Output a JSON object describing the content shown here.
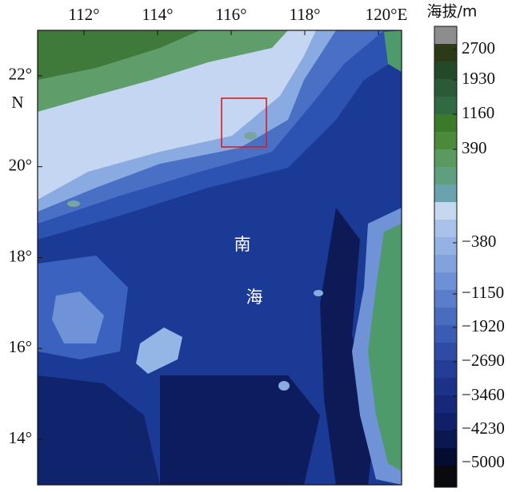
{
  "map": {
    "type": "map",
    "xlim": [
      110.74,
      120.63
    ],
    "ylim": [
      13,
      23
    ],
    "xticks": [
      {
        "value": 112,
        "label": "112°"
      },
      {
        "value": 114,
        "label": "114°"
      },
      {
        "value": 116,
        "label": "116°"
      },
      {
        "value": 118,
        "label": "118°"
      },
      {
        "value": 120,
        "label": "120°E"
      }
    ],
    "yticks": [
      {
        "value": 22,
        "label": "22°"
      },
      {
        "value": 20,
        "label": "20°"
      },
      {
        "value": 18,
        "label": "18°"
      },
      {
        "value": 16,
        "label": "16°"
      },
      {
        "value": 14,
        "label": "14°"
      }
    ],
    "y_axis_label": "N",
    "labels": [
      "南",
      "海"
    ],
    "colorbar": {
      "title": "海拔/m",
      "ticks": [
        2700,
        1930,
        1160,
        390,
        {
          "value": -380,
          "label": "−380"
        },
        {
          "value": -1150,
          "label": "−1150"
        },
        {
          "value": -1920,
          "label": "−1920"
        },
        {
          "value": -2690,
          "label": "−2690"
        },
        {
          "value": -3460,
          "label": "−3460"
        },
        {
          "value": -4230,
          "label": "−4230"
        },
        {
          "value": -5000,
          "label": "−5000"
        }
      ]
    }
  }
}
